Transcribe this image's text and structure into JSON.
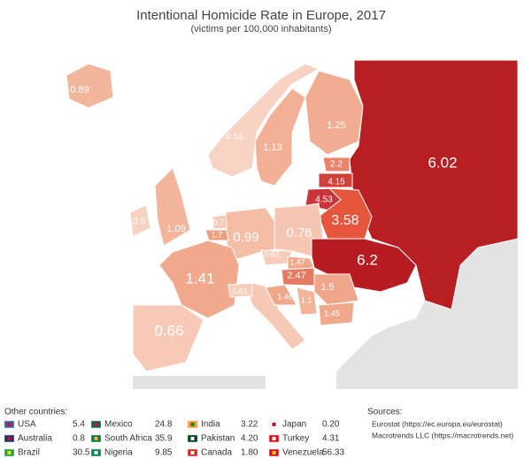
{
  "title": "Intentional Homicide Rate in Europe, 2017",
  "subtitle": "(victims per 100,000 inhabitants)",
  "regions": [
    {
      "label": "0.89",
      "color": "#f2b69c"
    },
    {
      "label": "0.53",
      "color": "#f8d2c2"
    },
    {
      "label": "1.13",
      "color": "#f2b196"
    },
    {
      "label": "1.25",
      "color": "#f1ad91"
    },
    {
      "label": "6.02",
      "color": "#b71f23"
    },
    {
      "label": "2.2",
      "color": "#e9836a"
    },
    {
      "label": "4.15",
      "color": "#d2403a"
    },
    {
      "label": "4.53",
      "color": "#c9353a"
    },
    {
      "label": "3.58",
      "color": "#e6563c"
    },
    {
      "label": "0.5",
      "color": "#f8d3c3"
    },
    {
      "label": "1.09",
      "color": "#f3b59b"
    },
    {
      "label": "0.99",
      "color": "#f4bda5"
    },
    {
      "label": "0.7",
      "color": "#f6c8b6"
    },
    {
      "label": "1.7",
      "color": "#ee9f82"
    },
    {
      "label": "0.76",
      "color": "#f6c6b3"
    },
    {
      "label": "1.41",
      "color": "#f0a98d"
    },
    {
      "label": "0.66",
      "color": "#f7cab8"
    },
    {
      "label": "0.62",
      "color": "#f7ccba"
    },
    {
      "label": "1.47",
      "color": "#f0a88b"
    },
    {
      "label": "2.47",
      "color": "#e47a61"
    },
    {
      "label": "6.2",
      "color": "#b71c22"
    },
    {
      "label": "1.5",
      "color": "#f0a68a"
    },
    {
      "label": "0.61",
      "color": "#f7cdbb"
    },
    {
      "label": "1.46",
      "color": "#f0a88c"
    },
    {
      "label": "1.1",
      "color": "#f3b499"
    },
    {
      "label": "1.45",
      "color": "#f0a98c"
    }
  ],
  "other_heading": "Other countries:",
  "other_countries": [
    {
      "name": "USA",
      "value": "5.4"
    },
    {
      "name": "Australia",
      "value": "0.8"
    },
    {
      "name": "Brazil",
      "value": "30.5"
    },
    {
      "name": "Mexico",
      "value": "24.8"
    },
    {
      "name": "South Africa",
      "value": "35.9"
    },
    {
      "name": "Nigeria",
      "value": "9.85"
    },
    {
      "name": "India",
      "value": "3.22"
    },
    {
      "name": "Pakistan",
      "value": "4.20"
    },
    {
      "name": "Canada",
      "value": "1.80"
    },
    {
      "name": "Japan",
      "value": "0.20"
    },
    {
      "name": "Turkey",
      "value": "4.31"
    },
    {
      "name": "Venezuela",
      "value": "56.33"
    }
  ],
  "sources_heading": "Sources:",
  "sources": [
    "Eurostat (https://ec.europa.eu/eurostat)",
    "Macrotrends LLC  (https://macrotrends.net)"
  ]
}
